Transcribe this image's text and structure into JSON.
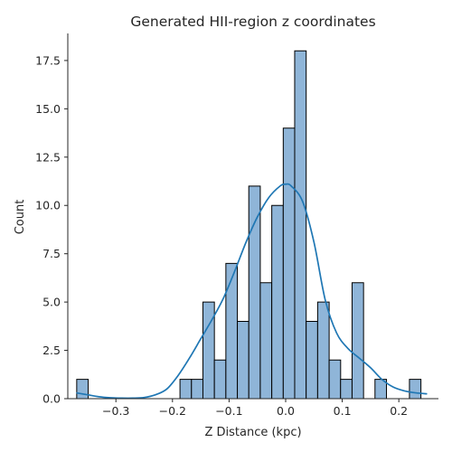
{
  "chart_data": {
    "type": "bar",
    "title": "Generated HII-region z coordinates",
    "xlabel": "Z Distance (kpc)",
    "ylabel": "Count",
    "xlim": [
      -0.385,
      0.27
    ],
    "ylim": [
      0,
      18.9
    ],
    "x_ticks": [
      -0.3,
      -0.2,
      -0.1,
      0.0,
      0.1,
      0.2
    ],
    "x_tick_labels": [
      "−0.3",
      "−0.2",
      "−0.1",
      "0.0",
      "0.1",
      "0.2"
    ],
    "y_ticks": [
      0,
      2.5,
      5,
      7.5,
      10,
      12.5,
      15,
      17.5
    ],
    "y_tick_labels": [
      "0.0",
      "2.5",
      "5.0",
      "7.5",
      "10.0",
      "12.5",
      "15.0",
      "17.5"
    ],
    "grid": false,
    "legend": "none",
    "bin_width": 0.0203,
    "bins": [
      {
        "x": -0.3591,
        "count": 1
      },
      {
        "x": -0.1766,
        "count": 1
      },
      {
        "x": -0.1563,
        "count": 1
      },
      {
        "x": -0.1361,
        "count": 5
      },
      {
        "x": -0.1158,
        "count": 2
      },
      {
        "x": -0.0955,
        "count": 7
      },
      {
        "x": -0.0752,
        "count": 4
      },
      {
        "x": -0.055,
        "count": 11
      },
      {
        "x": -0.0347,
        "count": 6
      },
      {
        "x": -0.0144,
        "count": 10
      },
      {
        "x": 0.0059,
        "count": 14
      },
      {
        "x": 0.0261,
        "count": 18
      },
      {
        "x": 0.0464,
        "count": 4
      },
      {
        "x": 0.0667,
        "count": 5
      },
      {
        "x": 0.087,
        "count": 2
      },
      {
        "x": 0.1072,
        "count": 1
      },
      {
        "x": 0.1275,
        "count": 6
      },
      {
        "x": 0.168,
        "count": 1
      },
      {
        "x": 0.2289,
        "count": 1
      }
    ],
    "kde": {
      "x": [
        -0.37,
        -0.35,
        -0.33,
        -0.31,
        -0.29,
        -0.27,
        -0.25,
        -0.23,
        -0.21,
        -0.19,
        -0.17,
        -0.15,
        -0.13,
        -0.11,
        -0.09,
        -0.07,
        -0.05,
        -0.03,
        -0.01,
        0.0,
        0.01,
        0.03,
        0.05,
        0.07,
        0.09,
        0.11,
        0.13,
        0.15,
        0.17,
        0.19,
        0.21,
        0.23,
        0.25
      ],
      "y": [
        0.3,
        0.2,
        0.1,
        0.05,
        0.03,
        0.03,
        0.06,
        0.2,
        0.5,
        1.2,
        2.1,
        3.1,
        4.1,
        5.2,
        6.6,
        8.1,
        9.4,
        10.4,
        11.0,
        11.1,
        11.0,
        10.2,
        8.1,
        5.1,
        3.4,
        2.6,
        2.1,
        1.6,
        1.0,
        0.6,
        0.4,
        0.3,
        0.25
      ]
    },
    "colors": {
      "bar_fill": "#8fb5d8",
      "bar_edge": "#000000",
      "kde_line": "#1f77b4",
      "axis": "#262626"
    }
  }
}
